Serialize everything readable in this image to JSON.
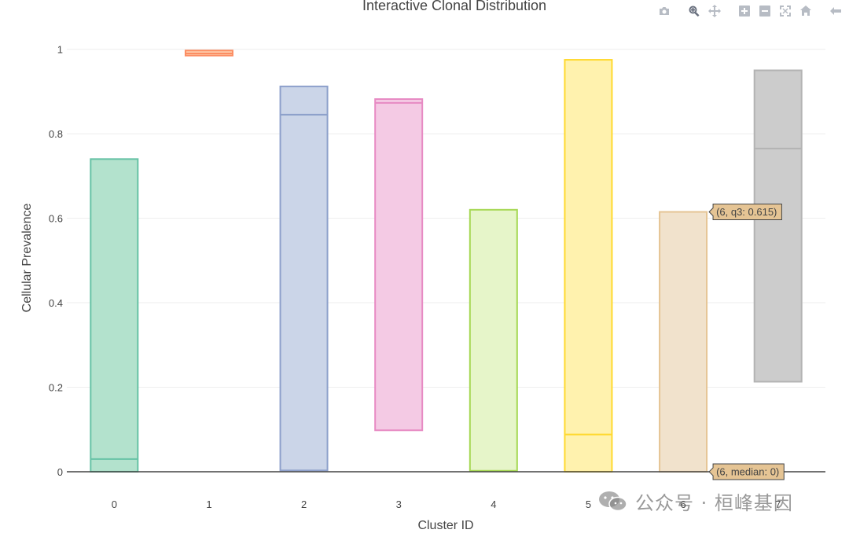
{
  "toolbar": {
    "buttons": [
      {
        "name": "camera-icon",
        "label": "Download plot as a png"
      },
      {
        "name": "zoom-icon",
        "label": "Zoom"
      },
      {
        "name": "pan-icon",
        "label": "Pan"
      },
      {
        "name": "zoom-in-icon",
        "label": "Zoom in"
      },
      {
        "name": "zoom-out-icon",
        "label": "Zoom out"
      },
      {
        "name": "autoscale-icon",
        "label": "Autoscale"
      },
      {
        "name": "home-icon",
        "label": "Reset axes"
      },
      {
        "name": "hover-closest-icon",
        "label": "Show closest data on hover"
      }
    ]
  },
  "watermark": {
    "text": "公众号 · 桓峰基因",
    "icon": "wechat-icon"
  },
  "chart_data": {
    "type": "box",
    "title": "Interactive Clonal Distribution",
    "xlabel": "Cluster ID",
    "ylabel": "Cellular Prevalence",
    "categories": [
      "0",
      "1",
      "2",
      "3",
      "4",
      "5",
      "6",
      "7"
    ],
    "ylim": [
      -0.015,
      1.07
    ],
    "yticks": [
      0,
      0.2,
      0.4,
      0.6,
      0.8,
      1
    ],
    "ytick_labels": [
      "0",
      "0.2",
      "0.4",
      "0.6",
      "0.8",
      "1"
    ],
    "grid": true,
    "boxes": [
      {
        "x": "0",
        "q1": 0,
        "median": 0.03,
        "q3": 0.74,
        "fill": "#b3e2cd",
        "line": "#66c2a5"
      },
      {
        "x": "1",
        "q1": 0.985,
        "median": 0.99,
        "q3": 0.997,
        "fill": "#fdcdac",
        "line": "#fc8d62"
      },
      {
        "x": "2",
        "q1": 0.003,
        "median": 0.845,
        "q3": 0.912,
        "fill": "#cbd5e8",
        "line": "#8da0cb"
      },
      {
        "x": "3",
        "q1": 0.098,
        "median": 0.873,
        "q3": 0.882,
        "fill": "#f4cae4",
        "line": "#e78ac3"
      },
      {
        "x": "4",
        "q1": 0.002,
        "median": 0.002,
        "q3": 0.62,
        "fill": "#e6f5c9",
        "line": "#a6d854"
      },
      {
        "x": "5",
        "q1": 0,
        "median": 0.088,
        "q3": 0.975,
        "fill": "#fff2ae",
        "line": "#ffd92f"
      },
      {
        "x": "6",
        "q1": 0,
        "median": 0,
        "q3": 0.615,
        "fill": "#f1e2cc",
        "line": "#e5c494"
      },
      {
        "x": "7",
        "q1": 0.213,
        "median": 0.765,
        "q3": 0.95,
        "fill": "#cccccc",
        "line": "#b3b3b3"
      }
    ],
    "hover_labels": [
      {
        "x": "6",
        "y": 0.615,
        "text": "(6, q3: 0.615)"
      },
      {
        "x": "6",
        "y": 0,
        "text": "(6, median: 0)"
      }
    ]
  }
}
